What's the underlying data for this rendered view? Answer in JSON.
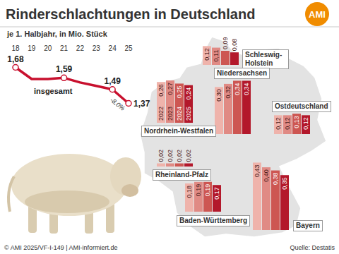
{
  "title": "Rinderschlachtungen in Deutschland",
  "logo": "AMI",
  "footer": "© AMI 2025/VF-I-149 | AMI-informiert.de",
  "source": "Quelle: Destatis",
  "chart_data": [
    {
      "type": "line",
      "subtitle": "je 1. Halbjahr, in Mio. Stück",
      "categories": [
        "18",
        "19",
        "20",
        "21",
        "22",
        "23",
        "24",
        "25"
      ],
      "series": [
        {
          "name": "insgesamt",
          "color": "#c8102e",
          "values": [
            1.68,
            1.58,
            1.58,
            1.59,
            1.55,
            1.52,
            1.49,
            1.37
          ],
          "value_labels": [
            "1,68",
            null,
            null,
            "1,59",
            null,
            null,
            "1,49",
            "1,37"
          ]
        }
      ],
      "ylim": [
        1.3,
        1.75
      ],
      "tick_labels": "x",
      "data_labels": true,
      "marker": "circle",
      "annotations": [
        {
          "text": "-8,0%"
        }
      ]
    },
    {
      "type": "bar",
      "categories": [
        "Nordrhein-Westfalen",
        "Schleswig-Holstein",
        "Niedersachsen",
        "Ostdeutschland",
        "Rheinland-Pfalz",
        "Baden-Württemberg",
        "Bayern"
      ],
      "series": [
        {
          "name": "2022",
          "color": "#efb3ab",
          "values": [
            0.26,
            0.12,
            0.3,
            0.12,
            0.02,
            0.18,
            0.43
          ],
          "value_labels": [
            "0,26",
            "0,12",
            "0,30",
            "0,12",
            "0,02",
            "0,18",
            "0,43"
          ]
        },
        {
          "name": "2023",
          "color": "#e08a84",
          "values": [
            0.27,
            0.11,
            0.32,
            0.12,
            0.02,
            0.19,
            0.4
          ],
          "value_labels": [
            "0,27",
            "0,11",
            "0,32",
            "0,12",
            "0,02",
            "0,19",
            "0,40"
          ]
        },
        {
          "name": "2024",
          "color": "#cd5652",
          "values": [
            0.25,
            0.09,
            0.34,
            0.13,
            0.02,
            0.19,
            0.38
          ],
          "value_labels": [
            "0,25",
            "0,09",
            "0,34",
            "0,13",
            "0,02",
            "0,19",
            "0,38"
          ]
        },
        {
          "name": "2025",
          "color": "#b3182b",
          "values": [
            0.24,
            0.08,
            0.34,
            0.12,
            0.02,
            0.17,
            0.35
          ],
          "value_labels": [
            "0,24",
            "0,08",
            "0,34",
            "0,12",
            "0,02",
            "0,17",
            "0,35"
          ]
        }
      ],
      "ylim": [
        0,
        0.45
      ],
      "tick_labels": false,
      "data_labels": true
    }
  ]
}
